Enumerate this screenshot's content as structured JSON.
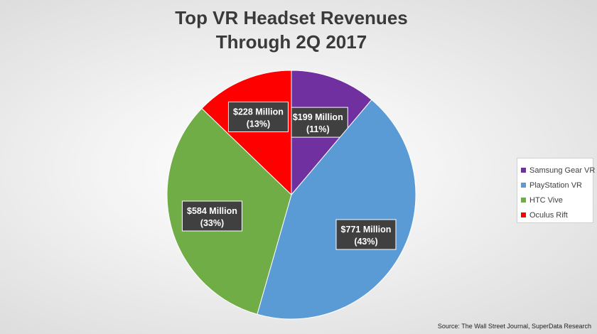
{
  "chart_data": {
    "type": "pie",
    "title": [
      "Top VR Headset Revenues",
      "Through 2Q 2017"
    ],
    "slices": [
      {
        "name": "Samsung Gear VR",
        "value": 199,
        "percent": 11,
        "label": "$199 Million",
        "percent_label": "(11%)",
        "color": "#7030a0"
      },
      {
        "name": "PlayStation VR",
        "value": 771,
        "percent": 43,
        "label": "$771 Million",
        "percent_label": "(43%)",
        "color": "#5b9bd5"
      },
      {
        "name": "HTC Vive",
        "value": 584,
        "percent": 33,
        "label": "$584 Million",
        "percent_label": "(33%)",
        "color": "#70ad47"
      },
      {
        "name": "Oculus Rift",
        "value": 228,
        "percent": 13,
        "label": "$228 Million",
        "percent_label": "(13%)",
        "color": "#ff0000"
      }
    ],
    "legend_position": "right"
  },
  "source": "Source: The Wall Street Journal, SuperData Research"
}
